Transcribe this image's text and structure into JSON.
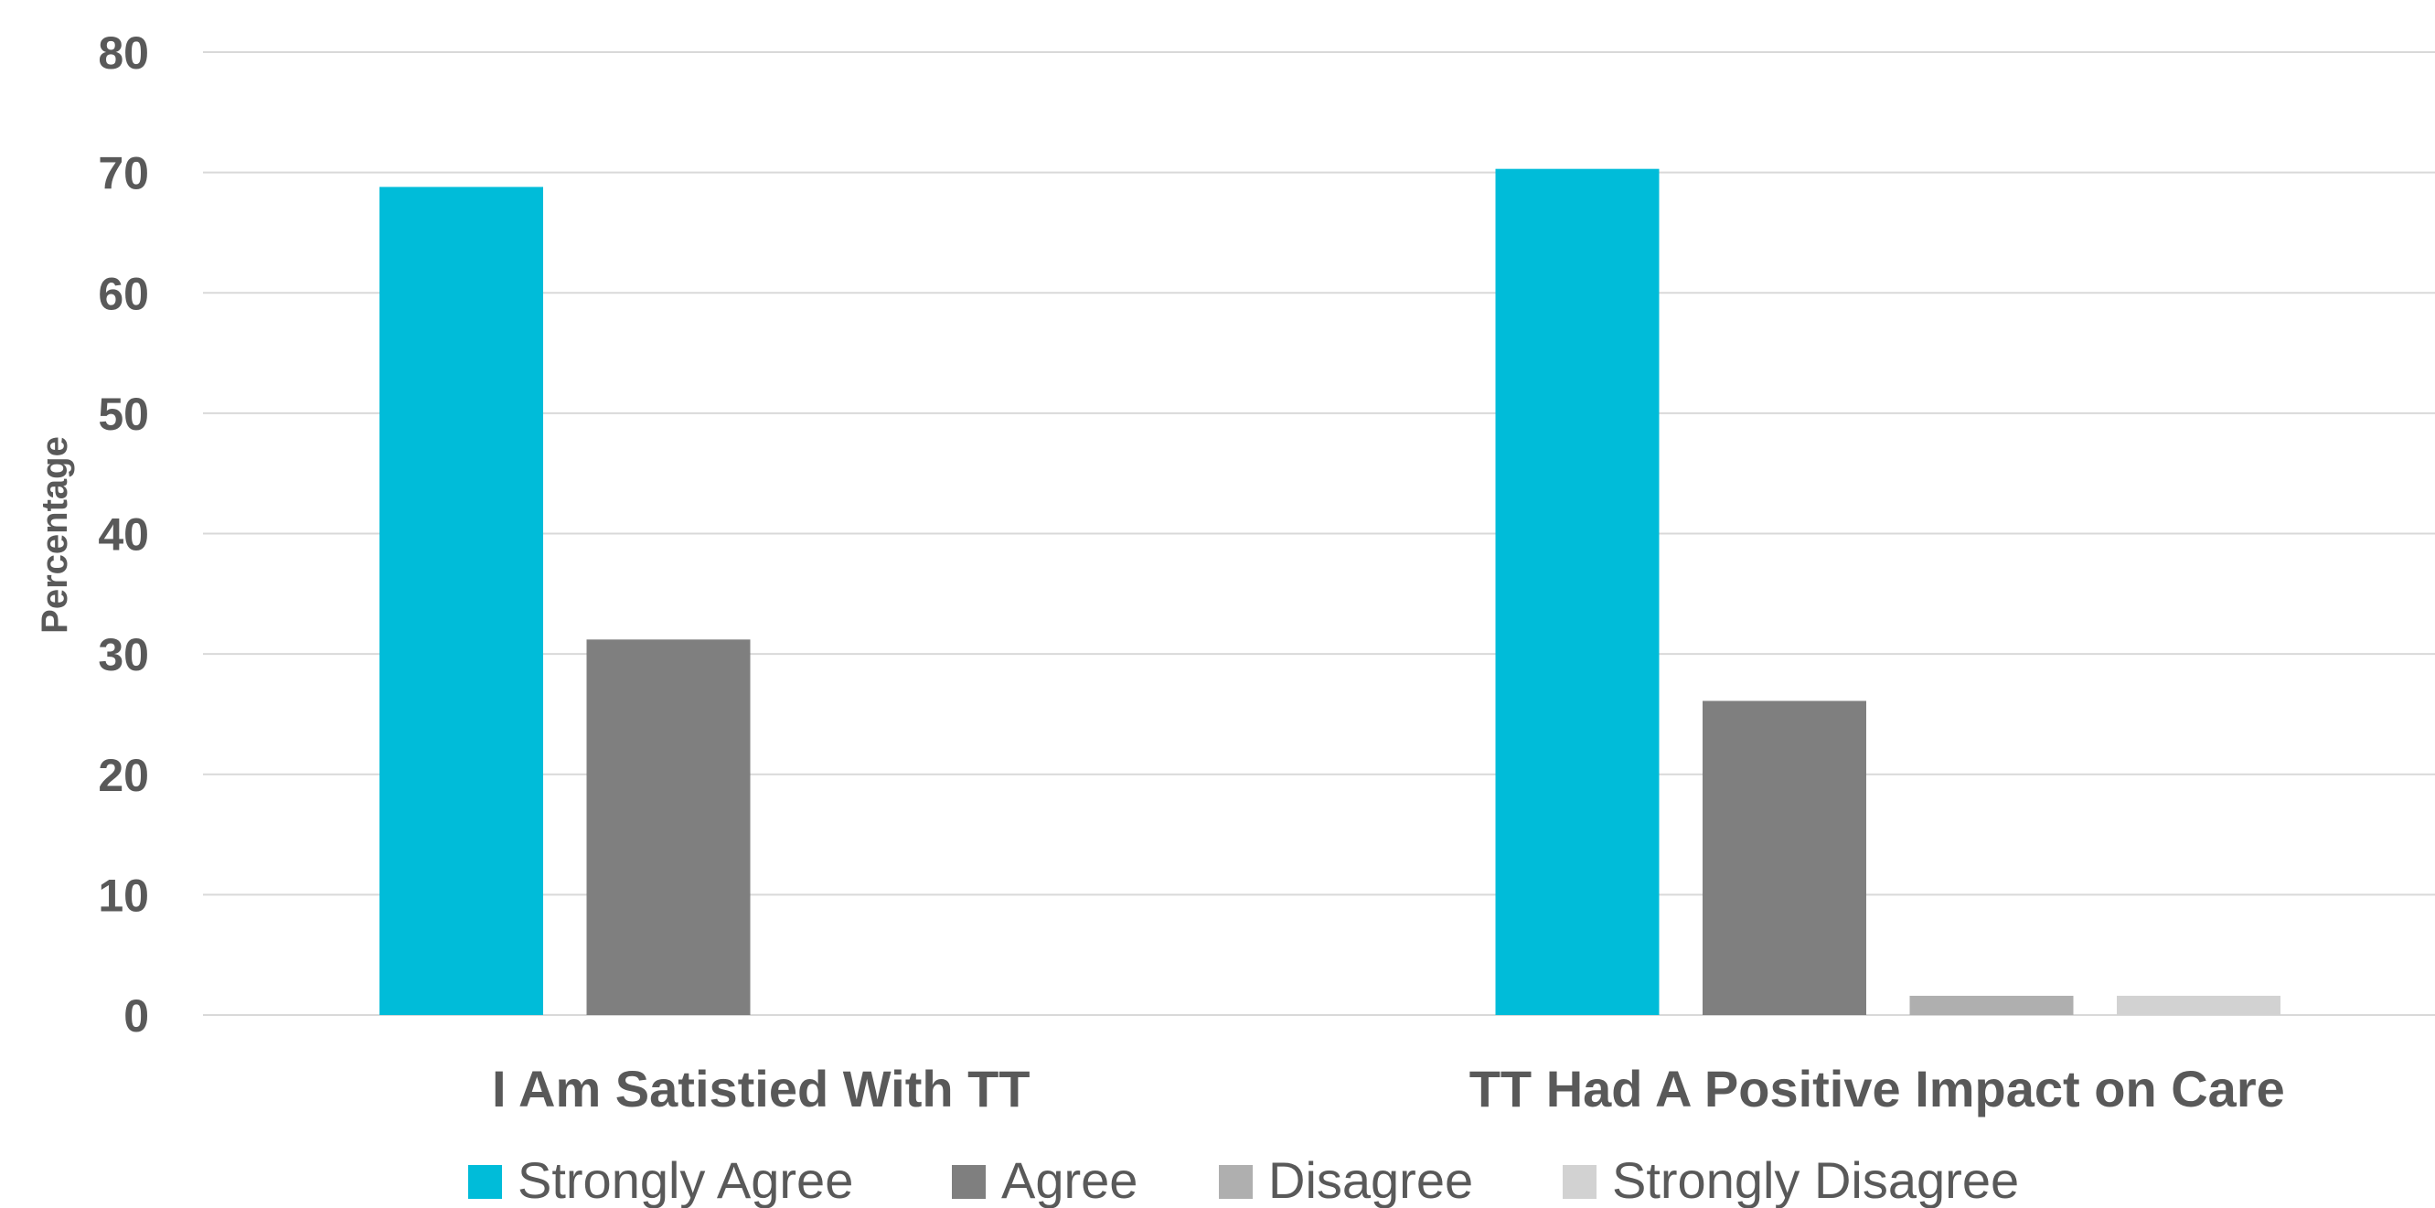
{
  "chart_data": {
    "type": "bar",
    "categories": [
      "I Am Satistied With TT",
      "TT Had A Positive Impact on Care"
    ],
    "series": [
      {
        "name": "Strongly Agree",
        "values": [
          68.8,
          70.3
        ],
        "color": "#00BCD9"
      },
      {
        "name": "Agree",
        "values": [
          31.2,
          26.1
        ],
        "color": "#7F7F7F"
      },
      {
        "name": "Disagree",
        "values": [
          0,
          1.6
        ],
        "color": "#AFAFAF"
      },
      {
        "name": "Strongly Disagree",
        "values": [
          0,
          1.6
        ],
        "color": "#D2D2D2"
      }
    ],
    "ylabel": "Percentage",
    "ylim": [
      0,
      80
    ],
    "yticks": [
      0,
      10,
      20,
      30,
      40,
      50,
      60,
      70,
      80
    ],
    "grid": true,
    "legend": "bottom"
  }
}
